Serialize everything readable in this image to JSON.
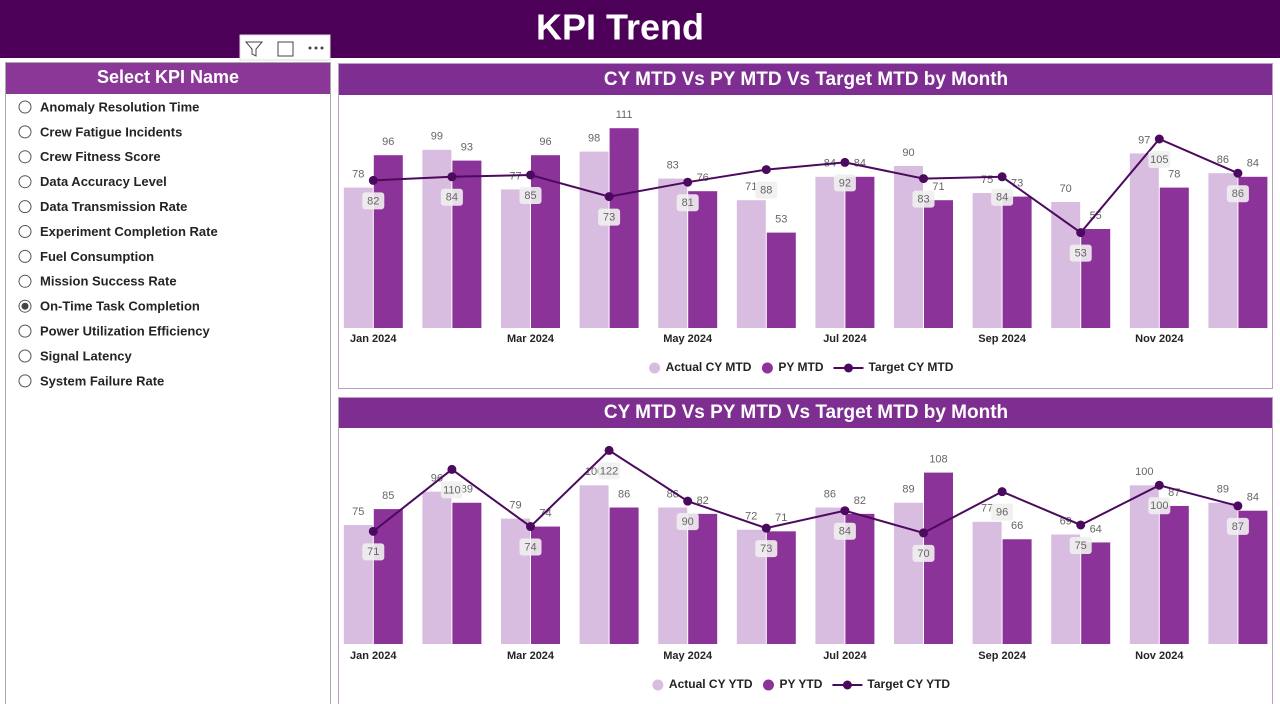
{
  "header": {
    "title": "KPI Trend"
  },
  "slicer": {
    "title": "Select KPI Name",
    "options": [
      "Anomaly Resolution Time",
      "Crew Fatigue Incidents",
      "Crew Fitness Score",
      "Data Accuracy Level",
      "Data Transmission Rate",
      "Experiment Completion Rate",
      "Fuel Consumption",
      "Mission Success Rate",
      "On-Time Task Completion",
      "Power Utilization Efficiency",
      "Signal Latency",
      "System Failure Rate"
    ],
    "selected": 8
  },
  "chart_data": [
    {
      "type": "combo",
      "title": "CY MTD Vs PY MTD Vs Target MTD by Month",
      "categories": [
        "Jan 2024",
        null,
        "Mar 2024",
        null,
        "May 2024",
        null,
        "Jul 2024",
        null,
        "Sep 2024",
        null,
        "Nov 2024",
        null
      ],
      "series": [
        {
          "name": "Actual CY MTD",
          "type": "bar",
          "color": "#d9bde0",
          "values": [
            78,
            99,
            77,
            98,
            83,
            71,
            84,
            90,
            75,
            70,
            97,
            86
          ]
        },
        {
          "name": "PY MTD",
          "type": "bar",
          "color": "#8b3399",
          "values": [
            96,
            93,
            96,
            111,
            76,
            53,
            84,
            71,
            73,
            55,
            78,
            84
          ]
        },
        {
          "name": "Target CY MTD",
          "type": "line",
          "color": "#4b0a5e",
          "values": [
            82,
            84,
            85,
            73,
            81,
            88,
            92,
            83,
            84,
            53,
            105,
            86
          ]
        }
      ]
    },
    {
      "type": "combo",
      "title": "CY MTD Vs PY MTD Vs Target MTD by Month",
      "categories": [
        "Jan 2024",
        null,
        "Mar 2024",
        null,
        "May 2024",
        null,
        "Jul 2024",
        null,
        "Sep 2024",
        null,
        "Nov 2024",
        null
      ],
      "series": [
        {
          "name": "Actual CY YTD",
          "type": "bar",
          "color": "#d9bde0",
          "values": [
            75,
            96,
            79,
            100,
            86,
            72,
            86,
            89,
            77,
            69,
            100,
            89
          ]
        },
        {
          "name": "PY YTD",
          "type": "bar",
          "color": "#8b3399",
          "values": [
            85,
            89,
            74,
            86,
            82,
            71,
            82,
            108,
            66,
            64,
            87,
            84
          ]
        },
        {
          "name": "Target CY YTD",
          "type": "line",
          "color": "#4b0a5e",
          "values": [
            71,
            110,
            74,
            122,
            90,
            73,
            84,
            70,
            96,
            75,
            100,
            87
          ]
        }
      ]
    }
  ]
}
